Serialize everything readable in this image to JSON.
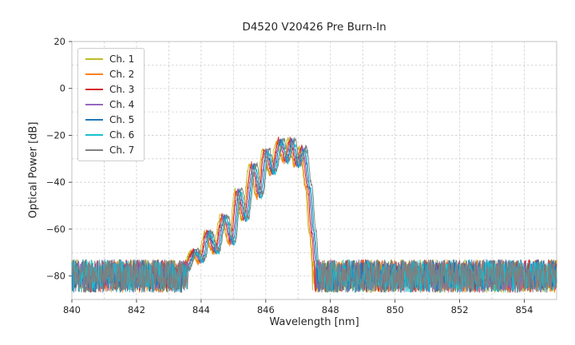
{
  "chart_data": {
    "type": "line",
    "title": "D4520 V20426 Pre Burn-In",
    "xlabel": "Wavelength [nm]",
    "ylabel": "Optical Power [dB]",
    "xlim": [
      840,
      855
    ],
    "ylim": [
      -90,
      20
    ],
    "xticks": [
      840,
      842,
      844,
      846,
      848,
      850,
      852,
      854
    ],
    "yticks": [
      20,
      0,
      -20,
      -40,
      -60,
      -80
    ],
    "x_grid_step": 1,
    "y_grid_step": 10,
    "grid": true,
    "legend_position": "upper-left",
    "noise_floor_db": -80,
    "noise_peak_to_peak_db": 14,
    "series": [
      {
        "name": "Ch. 1",
        "color": "#bcbd22"
      },
      {
        "name": "Ch. 2",
        "color": "#ff7f0e"
      },
      {
        "name": "Ch. 3",
        "color": "#d62728"
      },
      {
        "name": "Ch. 4",
        "color": "#9467bd"
      },
      {
        "name": "Ch. 5",
        "color": "#1f77b4"
      },
      {
        "name": "Ch. 6",
        "color": "#17becf"
      },
      {
        "name": "Ch. 7",
        "color": "#7f7f7f"
      }
    ],
    "spectrum_envelope": [
      [
        843.5,
        -78
      ],
      [
        843.8,
        -70
      ],
      [
        844.0,
        -74
      ],
      [
        844.2,
        -62
      ],
      [
        844.45,
        -70
      ],
      [
        844.7,
        -55
      ],
      [
        844.95,
        -66
      ],
      [
        845.15,
        -44
      ],
      [
        845.35,
        -56
      ],
      [
        845.6,
        -33
      ],
      [
        845.8,
        -46
      ],
      [
        846.0,
        -27
      ],
      [
        846.2,
        -36
      ],
      [
        846.45,
        -22.5
      ],
      [
        846.62,
        -31
      ],
      [
        846.8,
        -22.5
      ],
      [
        846.97,
        -33
      ],
      [
        847.15,
        -26
      ],
      [
        847.32,
        -42
      ],
      [
        847.45,
        -62
      ],
      [
        847.55,
        -78
      ]
    ]
  }
}
